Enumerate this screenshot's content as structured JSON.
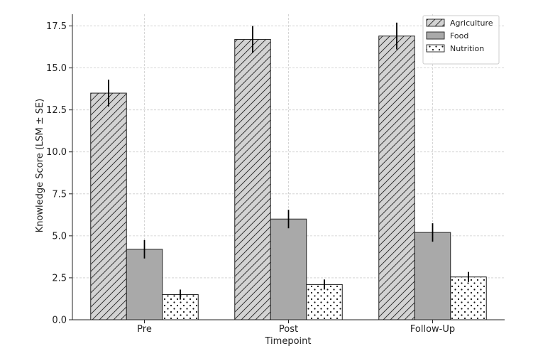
{
  "chart_data": {
    "type": "bar",
    "title": "",
    "xlabel": "Timepoint",
    "ylabel": "Knowledge Score (LSM ± SE)",
    "categories": [
      "Pre",
      "Post",
      "Follow-Up"
    ],
    "ylim": [
      0,
      18.2
    ],
    "yticks": [
      0.0,
      2.5,
      5.0,
      7.5,
      10.0,
      12.5,
      15.0,
      17.5
    ],
    "ytick_labels": [
      "0.0",
      "2.5",
      "5.0",
      "7.5",
      "10.0",
      "12.5",
      "15.0",
      "17.5"
    ],
    "grid": true,
    "legend_position": "top-right",
    "series": [
      {
        "name": "Agriculture",
        "values": [
          13.5,
          16.7,
          16.9
        ],
        "errors": [
          0.8,
          0.8,
          0.8
        ],
        "fill": "#d3d3d3",
        "pattern": "hatch"
      },
      {
        "name": "Food",
        "values": [
          4.2,
          6.0,
          5.2
        ],
        "errors": [
          0.55,
          0.55,
          0.55
        ],
        "fill": "#a9a9a9",
        "pattern": "none"
      },
      {
        "name": "Nutrition",
        "values": [
          1.5,
          2.1,
          2.55
        ],
        "errors": [
          0.3,
          0.3,
          0.3
        ],
        "fill": "#ffffff",
        "pattern": "dots"
      }
    ]
  }
}
